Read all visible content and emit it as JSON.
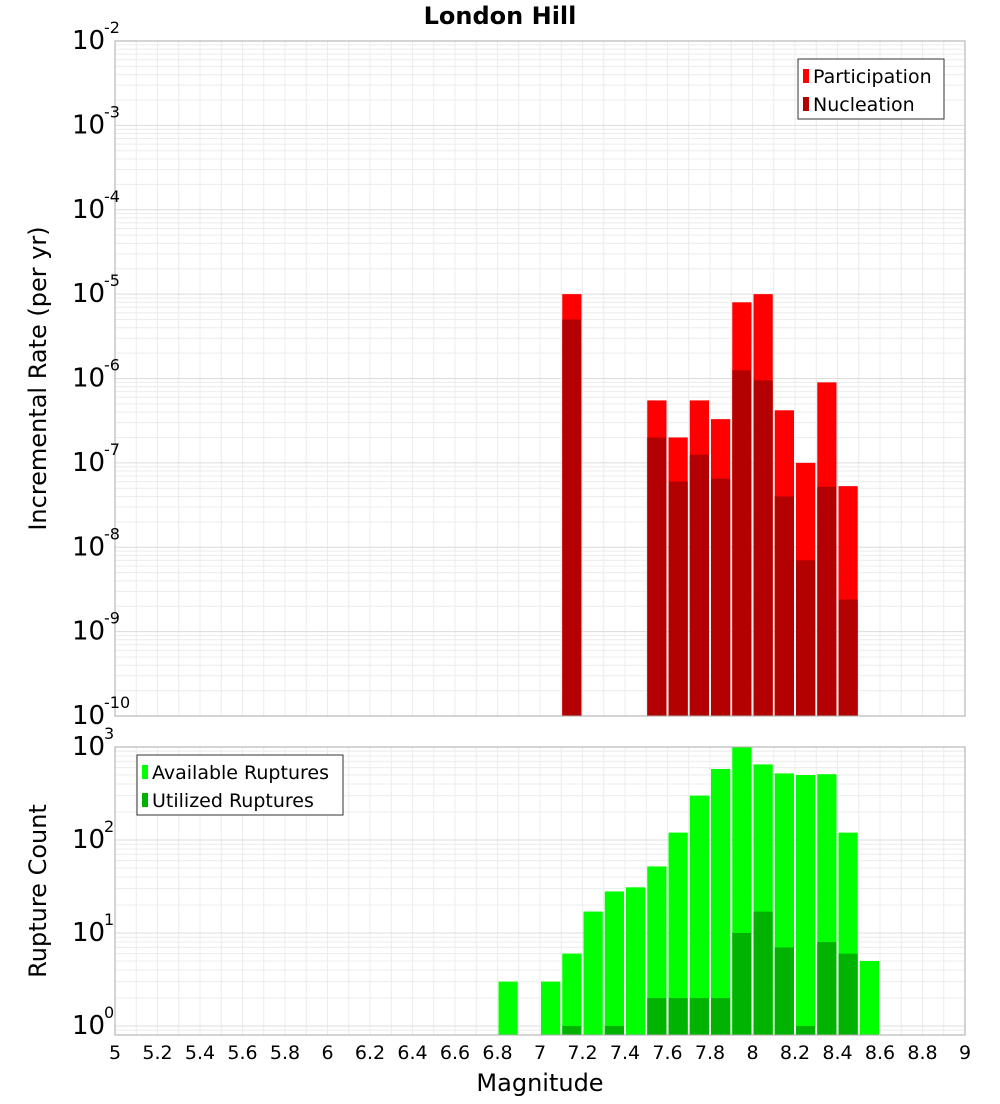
{
  "chart_data": [
    {
      "type": "bar",
      "scale": "log",
      "title": "London Hill",
      "xlabel": "",
      "ylabel": "Incremental Rate (per yr)",
      "xlim": [
        5,
        9
      ],
      "ylim": [
        1e-10,
        0.01
      ],
      "y_tick_exponents": [
        "-10",
        "-9",
        "-8",
        "-7",
        "-6",
        "-5",
        "-4",
        "-3",
        "-2"
      ],
      "bin_width": 0.1,
      "legend_position": "top-right",
      "grid": true,
      "series": [
        {
          "name": "Participation",
          "color": "#ff0000",
          "x": [
            7.1,
            7.5,
            7.6,
            7.7,
            7.8,
            7.9,
            8.0,
            8.1,
            8.2,
            8.3,
            8.4
          ],
          "values": [
            1e-05,
            5.5e-07,
            2e-07,
            5.5e-07,
            3.3e-07,
            8e-06,
            1e-05,
            4.2e-07,
            1e-07,
            9e-07,
            5.3e-08
          ]
        },
        {
          "name": "Nucleation",
          "color": "#b30000",
          "x": [
            7.1,
            7.5,
            7.6,
            7.7,
            7.8,
            7.9,
            8.0,
            8.1,
            8.2,
            8.3,
            8.4
          ],
          "values": [
            5e-06,
            2e-07,
            6e-08,
            1.25e-07,
            6.5e-08,
            1.25e-06,
            9.5e-07,
            4e-08,
            7e-09,
            5.2e-08,
            2.4e-09
          ]
        }
      ]
    },
    {
      "type": "bar",
      "scale": "log",
      "title": "",
      "xlabel": "Magnitude",
      "ylabel": "Rupture Count",
      "xlim": [
        5,
        9
      ],
      "ylim": [
        0.8,
        1000
      ],
      "x_ticks": [
        "5",
        "5.2",
        "5.4",
        "5.6",
        "5.8",
        "6",
        "6.2",
        "6.4",
        "6.6",
        "6.8",
        "7",
        "7.2",
        "7.4",
        "7.6",
        "7.8",
        "8",
        "8.2",
        "8.4",
        "8.6",
        "8.8",
        "9"
      ],
      "y_tick_exponents": [
        "0",
        "1",
        "2",
        "3"
      ],
      "bin_width": 0.1,
      "legend_position": "top-left",
      "grid": true,
      "series": [
        {
          "name": "Available Ruptures",
          "color": "#00ff00",
          "x": [
            6.8,
            7.0,
            7.1,
            7.2,
            7.3,
            7.4,
            7.5,
            7.6,
            7.7,
            7.8,
            7.9,
            8.0,
            8.1,
            8.2,
            8.3,
            8.4,
            8.5
          ],
          "values": [
            3,
            3,
            6,
            17,
            28,
            31,
            52,
            120,
            300,
            580,
            1000,
            650,
            520,
            500,
            510,
            120,
            5
          ]
        },
        {
          "name": "Utilized Ruptures",
          "color": "#00b300",
          "x": [
            7.1,
            7.3,
            7.5,
            7.6,
            7.7,
            7.8,
            7.9,
            8.0,
            8.1,
            8.2,
            8.3,
            8.4
          ],
          "values": [
            1,
            1,
            2,
            2,
            2,
            2,
            10,
            17,
            7,
            1,
            8,
            6
          ]
        }
      ]
    }
  ]
}
